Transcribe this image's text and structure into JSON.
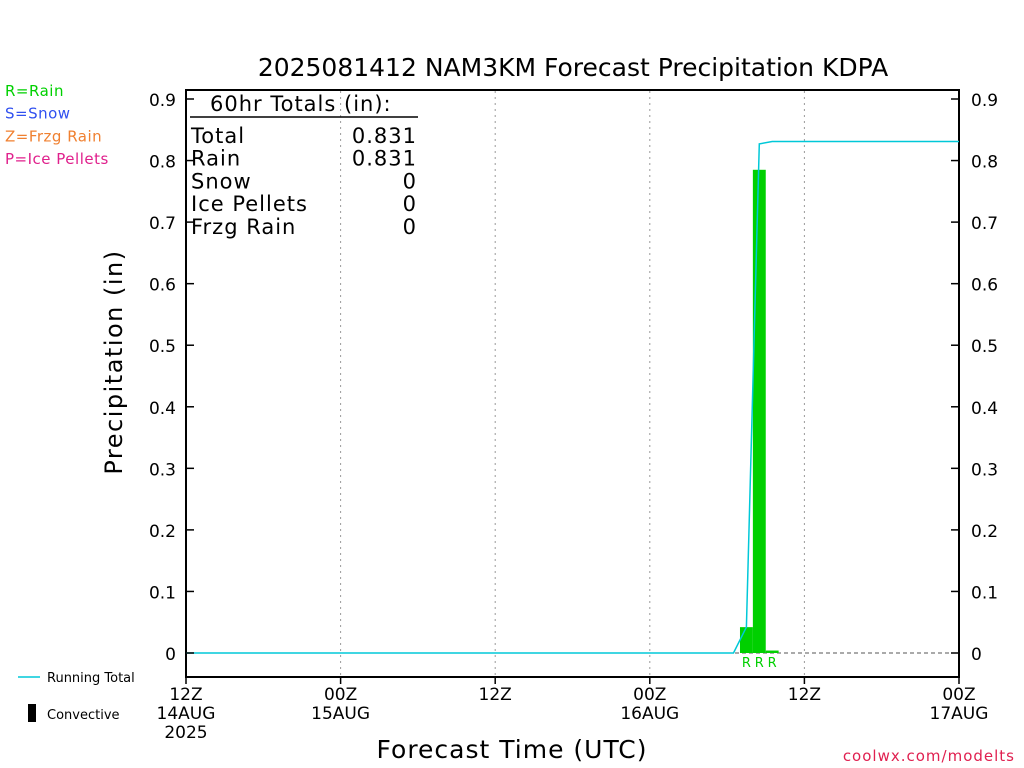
{
  "chart_data": {
    "type": "bar",
    "title": "2025081412 NAM3KM Forecast Precipitation KDPA",
    "xlabel": "Forecast Time (UTC)",
    "ylabel": "Precipitation (in)",
    "ylim": [
      0,
      0.9
    ],
    "y_ticks": [
      0,
      0.1,
      0.2,
      0.3,
      0.4,
      0.5,
      0.6,
      0.7,
      0.8,
      0.9
    ],
    "y_tick_labels": [
      "0",
      "0.1",
      "0.2",
      "0.3",
      "0.4",
      "0.5",
      "0.6",
      "0.7",
      "0.8",
      "0.9"
    ],
    "xlim_hours": [
      0,
      60
    ],
    "x_ticks": [
      {
        "hour": 0,
        "lines": [
          "12Z",
          "14AUG",
          "2025"
        ]
      },
      {
        "hour": 12,
        "lines": [
          "00Z",
          "15AUG"
        ]
      },
      {
        "hour": 24,
        "lines": [
          "12Z"
        ]
      },
      {
        "hour": 36,
        "lines": [
          "00Z",
          "16AUG"
        ]
      },
      {
        "hour": 48,
        "lines": [
          "12Z"
        ]
      },
      {
        "hour": 60,
        "lines": [
          "00Z",
          "17AUG"
        ]
      }
    ],
    "grid": "vertical dotted at day/half-day marks",
    "series": [
      {
        "name": "Rain",
        "color": "#00d000",
        "bars": [
          {
            "start_hour": 43.0,
            "end_hour": 44.0,
            "value": 0.042
          },
          {
            "start_hour": 44.0,
            "end_hour": 45.0,
            "value": 0.785
          },
          {
            "start_hour": 45.0,
            "end_hour": 46.0,
            "value": 0.004
          }
        ]
      },
      {
        "name": "Running Total",
        "color": "#00c8d8",
        "points": [
          [
            0,
            0
          ],
          [
            42.5,
            0
          ],
          [
            43.5,
            0.042
          ],
          [
            44.5,
            0.827
          ],
          [
            45.5,
            0.831
          ],
          [
            60,
            0.831
          ]
        ]
      }
    ],
    "ptype_markers": [
      {
        "hour": 43.5,
        "label": "R"
      },
      {
        "hour": 44.5,
        "label": "R"
      },
      {
        "hour": 45.5,
        "label": "R"
      }
    ],
    "totals_box": {
      "header": "60hr Totals (in):",
      "rows": [
        {
          "label": "Total",
          "value": "0.831"
        },
        {
          "label": "Rain",
          "value": "0.831"
        },
        {
          "label": "Snow",
          "value": "0"
        },
        {
          "label": "Ice Pellets",
          "value": "0"
        },
        {
          "label": "Frzg Rain",
          "value": "0"
        }
      ]
    }
  },
  "legend": {
    "ptypes": [
      {
        "text": "R=Rain",
        "color": "#00d000"
      },
      {
        "text": "S=Snow",
        "color": "#3050f0"
      },
      {
        "text": "Z=Frzg Rain",
        "color": "#f08030"
      },
      {
        "text": "P=Ice Pellets",
        "color": "#e0208c"
      }
    ],
    "running_total": "Running Total",
    "convective": "Convective"
  },
  "credit": "coolwx.com/modelts",
  "credit_color": "#e02050"
}
